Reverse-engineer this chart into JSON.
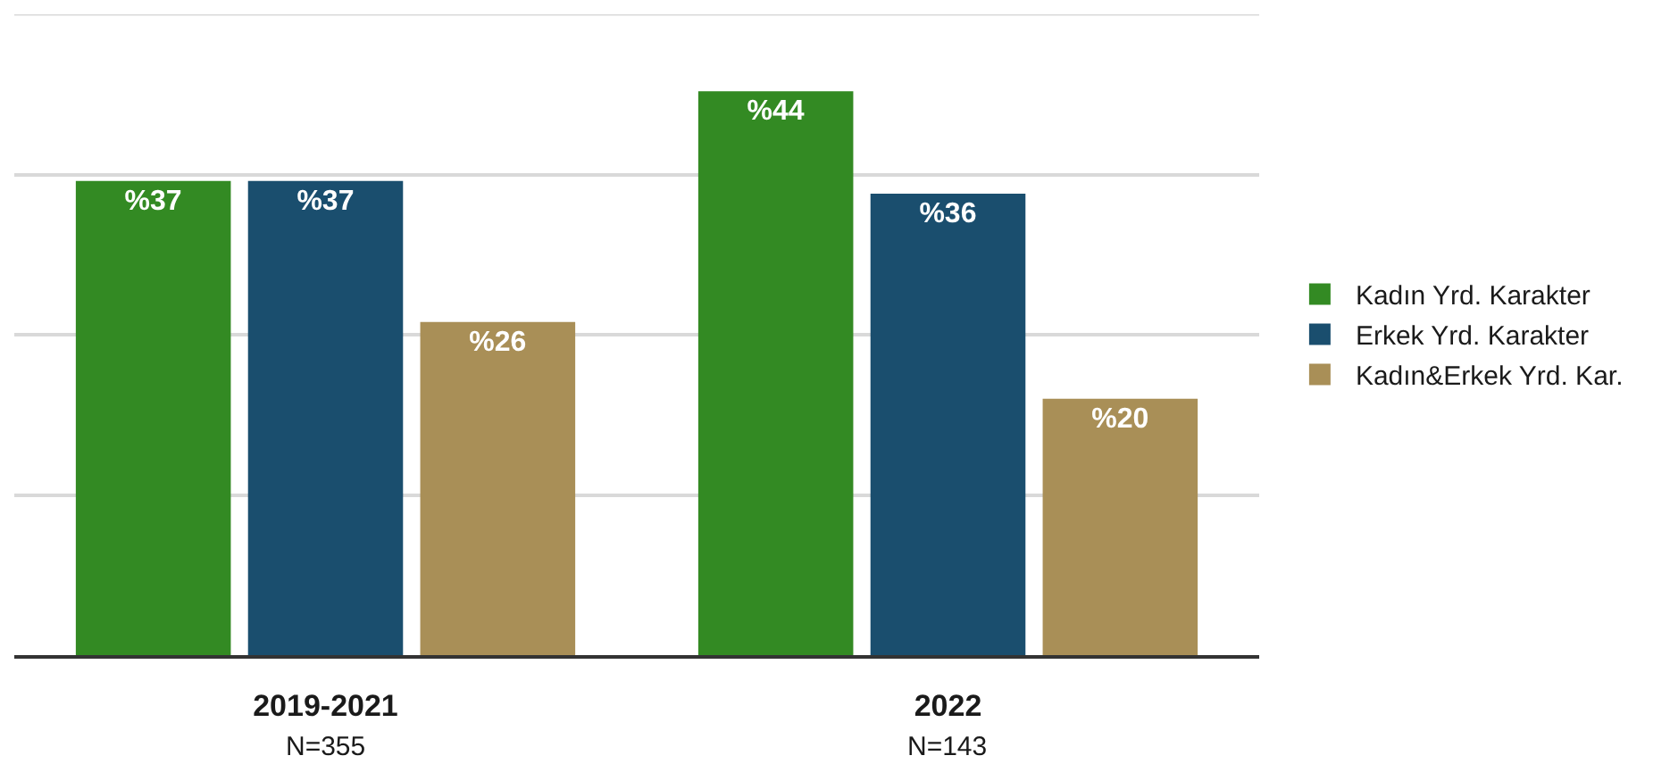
{
  "chart_data": {
    "type": "bar",
    "categories": [
      "2019-2021",
      "2022"
    ],
    "series": [
      {
        "name": "Kadın Yrd. Karakter",
        "color": "#338a23",
        "values": [
          37,
          44
        ],
        "value_labels": [
          "%37",
          "%44"
        ]
      },
      {
        "name": "Erkek Yrd. Karakter",
        "color": "#1a4e6e",
        "values": [
          37,
          36
        ],
        "value_labels": [
          "%37",
          "%36"
        ]
      },
      {
        "name": "Kadın&Erkek Yrd. Kar.",
        "color": "#a98f57",
        "values": [
          26,
          20
        ],
        "value_labels": [
          "%26",
          "%20"
        ]
      }
    ],
    "ylim": [
      0,
      50
    ],
    "yticks": [
      {
        "value": 12.5,
        "label": null
      },
      {
        "value": 25,
        "label": null
      },
      {
        "value": 37.5,
        "label": null
      },
      {
        "value": 50,
        "label": null
      }
    ],
    "tick_labels": "x",
    "grid": "y",
    "legend": "right",
    "annotations": [
      "N=355",
      "N=143"
    ]
  }
}
